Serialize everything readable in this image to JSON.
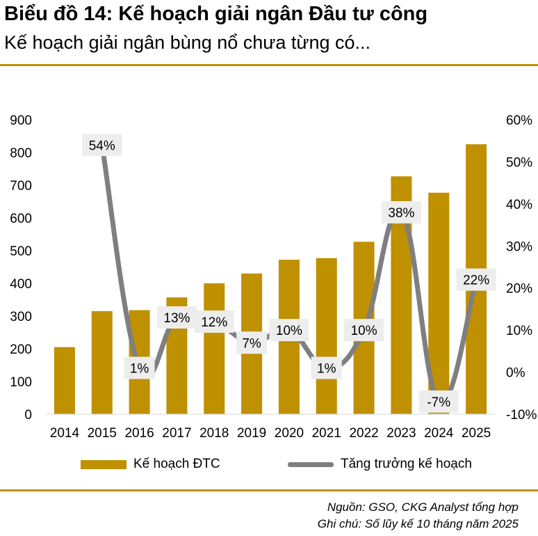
{
  "header": {
    "title": "Biểu đồ 14: Kế hoạch giải ngân Đầu tư công",
    "subtitle": "Kế hoạch giải ngân bùng nổ chưa từng có..."
  },
  "footer": {
    "source": "Nguồn: GSO, CKG Analyst tổng hợp",
    "note": "Ghi chú: Số lũy kế 10 tháng năm 2025"
  },
  "colors": {
    "bar": "#BF9000",
    "line": "#7F7F7F",
    "label_bg": "#EDEDED",
    "rule": "#BF9000"
  },
  "chart_data": {
    "type": "bar",
    "categories": [
      "2014",
      "2015",
      "2016",
      "2017",
      "2018",
      "2019",
      "2020",
      "2021",
      "2022",
      "2023",
      "2024",
      "2025"
    ],
    "series": [
      {
        "name": "Kế hoạch ĐTC",
        "type": "bar",
        "axis": "left",
        "values": [
          205,
          315,
          318,
          357,
          400,
          430,
          472,
          477,
          527,
          727,
          677,
          825
        ]
      },
      {
        "name": "Tăng trưởng kế hoạch",
        "type": "line",
        "axis": "right",
        "values": [
          null,
          54,
          1,
          13,
          12,
          7,
          10,
          1,
          10,
          38,
          -7,
          22
        ],
        "labels": [
          null,
          "54%",
          "1%",
          "13%",
          "12%",
          "7%",
          "10%",
          "1%",
          "10%",
          "38%",
          "-7%",
          "22%"
        ]
      }
    ],
    "y_left": {
      "ylim": [
        0,
        900
      ],
      "ticks": [
        "0",
        "100",
        "200",
        "300",
        "400",
        "500",
        "600",
        "700",
        "800",
        "900"
      ]
    },
    "y_right": {
      "ylim": [
        -10,
        60
      ],
      "ticks": [
        "-10%",
        "0%",
        "10%",
        "20%",
        "30%",
        "40%",
        "50%",
        "60%"
      ]
    },
    "grid": false,
    "legend": "bottom"
  }
}
